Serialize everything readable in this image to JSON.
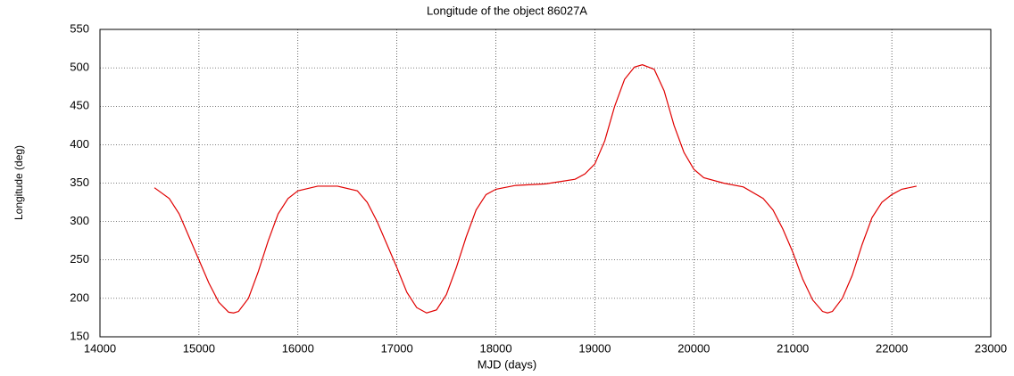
{
  "chart_data": {
    "type": "line",
    "title": "Longitude of the object 86027A",
    "xlabel": "MJD (days)",
    "ylabel": "Longitude (deg)",
    "xlim": [
      14000,
      23000
    ],
    "ylim": [
      150,
      550
    ],
    "xticks": [
      14000,
      15000,
      16000,
      17000,
      18000,
      19000,
      20000,
      21000,
      22000,
      23000
    ],
    "yticks": [
      150,
      200,
      250,
      300,
      350,
      400,
      450,
      500,
      550
    ],
    "grid": true,
    "x": [
      14550,
      14700,
      14800,
      14900,
      15000,
      15100,
      15200,
      15300,
      15350,
      15400,
      15500,
      15600,
      15700,
      15800,
      15900,
      16000,
      16200,
      16400,
      16600,
      16700,
      16800,
      16900,
      17000,
      17100,
      17200,
      17300,
      17400,
      17500,
      17600,
      17700,
      17800,
      17900,
      18000,
      18200,
      18500,
      18800,
      18900,
      19000,
      19100,
      19200,
      19300,
      19400,
      19480,
      19600,
      19700,
      19800,
      19900,
      20000,
      20100,
      20300,
      20500,
      20700,
      20800,
      20900,
      21000,
      21100,
      21200,
      21300,
      21350,
      21400,
      21500,
      21600,
      21700,
      21800,
      21900,
      22000,
      22100,
      22250
    ],
    "series": [
      {
        "color": "#e00000",
        "values": [
          344,
          330,
          310,
          280,
          250,
          220,
          195,
          182,
          181,
          183,
          200,
          235,
          275,
          310,
          330,
          340,
          346,
          346,
          340,
          325,
          300,
          270,
          240,
          208,
          188,
          181,
          185,
          205,
          240,
          280,
          315,
          335,
          342,
          347,
          349,
          355,
          362,
          375,
          405,
          450,
          485,
          501,
          504,
          498,
          470,
          425,
          390,
          368,
          357,
          350,
          345,
          330,
          315,
          290,
          260,
          225,
          198,
          183,
          181,
          183,
          200,
          230,
          270,
          305,
          325,
          335,
          342,
          346
        ]
      }
    ]
  }
}
